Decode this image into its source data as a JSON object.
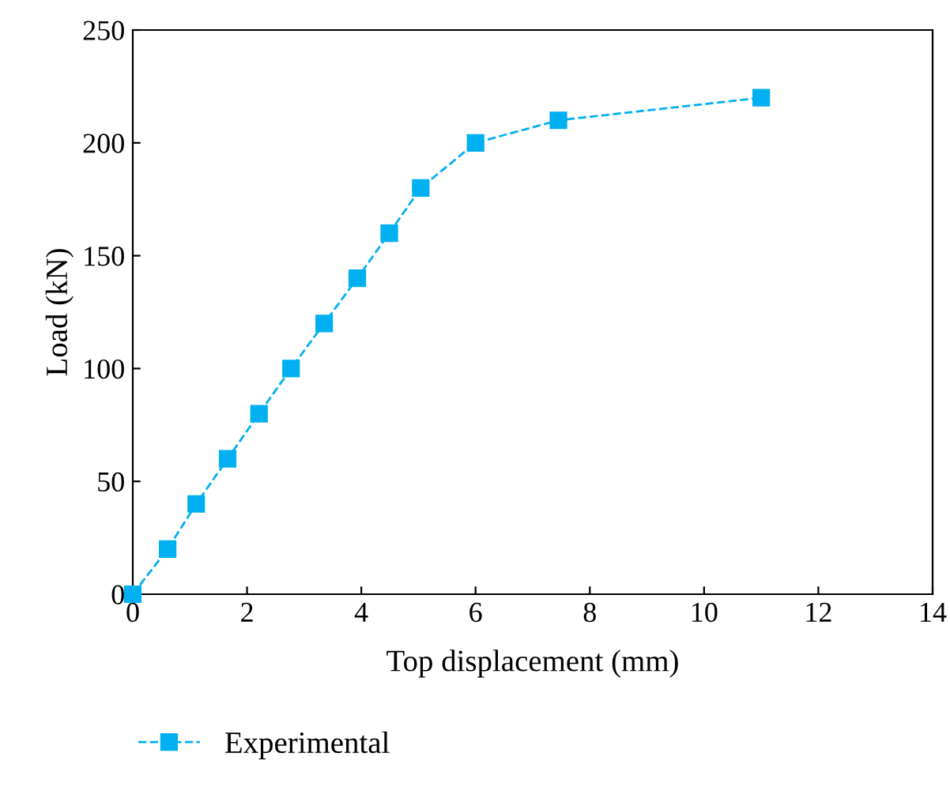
{
  "chart_data": {
    "type": "line",
    "xlabel": "Top displacement (mm)",
    "ylabel": "Load (kN)",
    "series": [
      {
        "name": "Experimental",
        "color": "#00b0f0",
        "x": [
          0,
          0.61,
          1.11,
          1.66,
          2.21,
          2.77,
          3.35,
          3.93,
          4.49,
          5.04,
          6.0,
          7.45,
          11.0
        ],
        "values": [
          0,
          20,
          40,
          60,
          80,
          100,
          120,
          140,
          160,
          180,
          200,
          210,
          220
        ]
      }
    ],
    "xlim": [
      0,
      14
    ],
    "xticks": [
      0,
      2,
      4,
      6,
      8,
      10,
      12,
      14
    ],
    "ylim": [
      0,
      250
    ],
    "yticks": [
      0,
      50,
      100,
      150,
      200,
      250
    ],
    "marker": "square",
    "line_style": "dashed",
    "legend": "bottom left",
    "grid": false
  }
}
